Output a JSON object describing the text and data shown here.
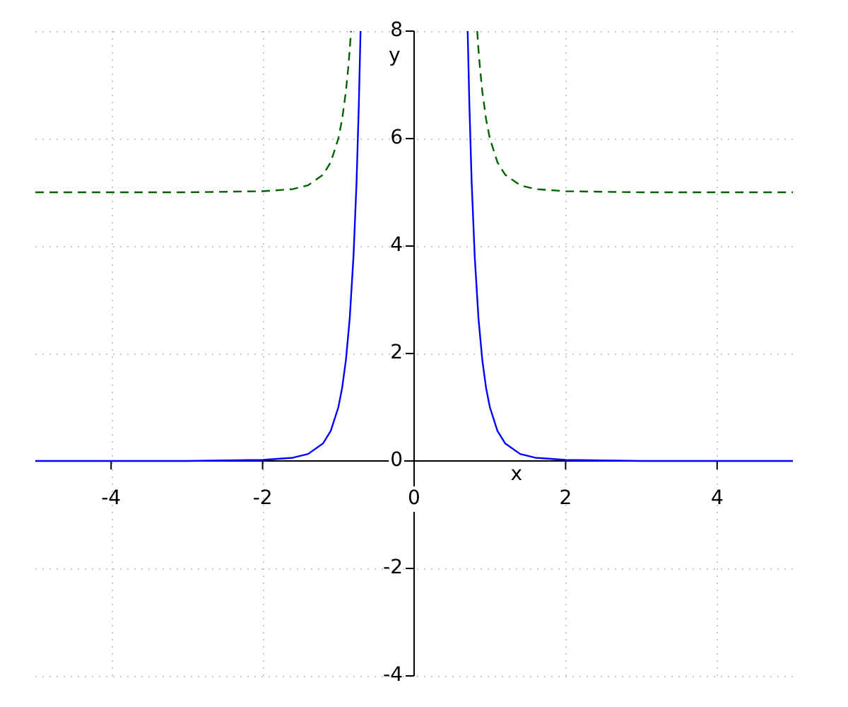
{
  "chart_data": {
    "type": "line",
    "xlabel": "x",
    "ylabel": "y",
    "xlim": [
      -5,
      5
    ],
    "ylim": [
      -4,
      8
    ],
    "xticks": [
      -4,
      -2,
      0,
      2,
      4
    ],
    "yticks": [
      -4,
      -2,
      0,
      2,
      4,
      6,
      8
    ],
    "grid": true,
    "legend": false,
    "marker": "none",
    "series": [
      {
        "color": "#0000ff",
        "line_style": "solid",
        "x": [
          -5,
          -3,
          -2,
          -1.6,
          -1.4,
          -1.2,
          -1.1,
          -1,
          -0.95,
          -0.9,
          -0.85,
          -0.8,
          -0.76,
          -0.73,
          -0.707,
          0,
          0.707,
          0.73,
          0.76,
          0.8,
          0.85,
          0.9,
          0.95,
          1,
          1.1,
          1.2,
          1.4,
          1.6,
          2,
          3,
          5
        ],
        "values": [
          0,
          0,
          0.02,
          0.06,
          0.13,
          0.33,
          0.56,
          1,
          1.36,
          1.88,
          2.65,
          3.81,
          5.18,
          6.61,
          8,
          null,
          8,
          6.61,
          5.18,
          3.81,
          2.65,
          1.88,
          1.36,
          1,
          0.56,
          0.33,
          0.13,
          0.06,
          0.02,
          0,
          0
        ]
      },
      {
        "color": "#006400",
        "line_style": "dashed",
        "x": [
          -5,
          -3,
          -2,
          -1.6,
          -1.4,
          -1.2,
          -1.1,
          -1,
          -0.95,
          -0.9,
          -0.87,
          -0.85,
          -0.833,
          0,
          0.833,
          0.85,
          0.87,
          0.9,
          0.95,
          1,
          1.1,
          1.2,
          1.4,
          1.6,
          2,
          3,
          5
        ],
        "values": [
          5,
          5,
          5.02,
          5.06,
          5.13,
          5.33,
          5.56,
          6,
          6.36,
          6.88,
          7.31,
          7.65,
          8,
          null,
          8,
          7.65,
          7.31,
          6.88,
          6.36,
          6,
          5.56,
          5.33,
          5.13,
          5.06,
          5.02,
          5,
          5
        ]
      }
    ]
  }
}
